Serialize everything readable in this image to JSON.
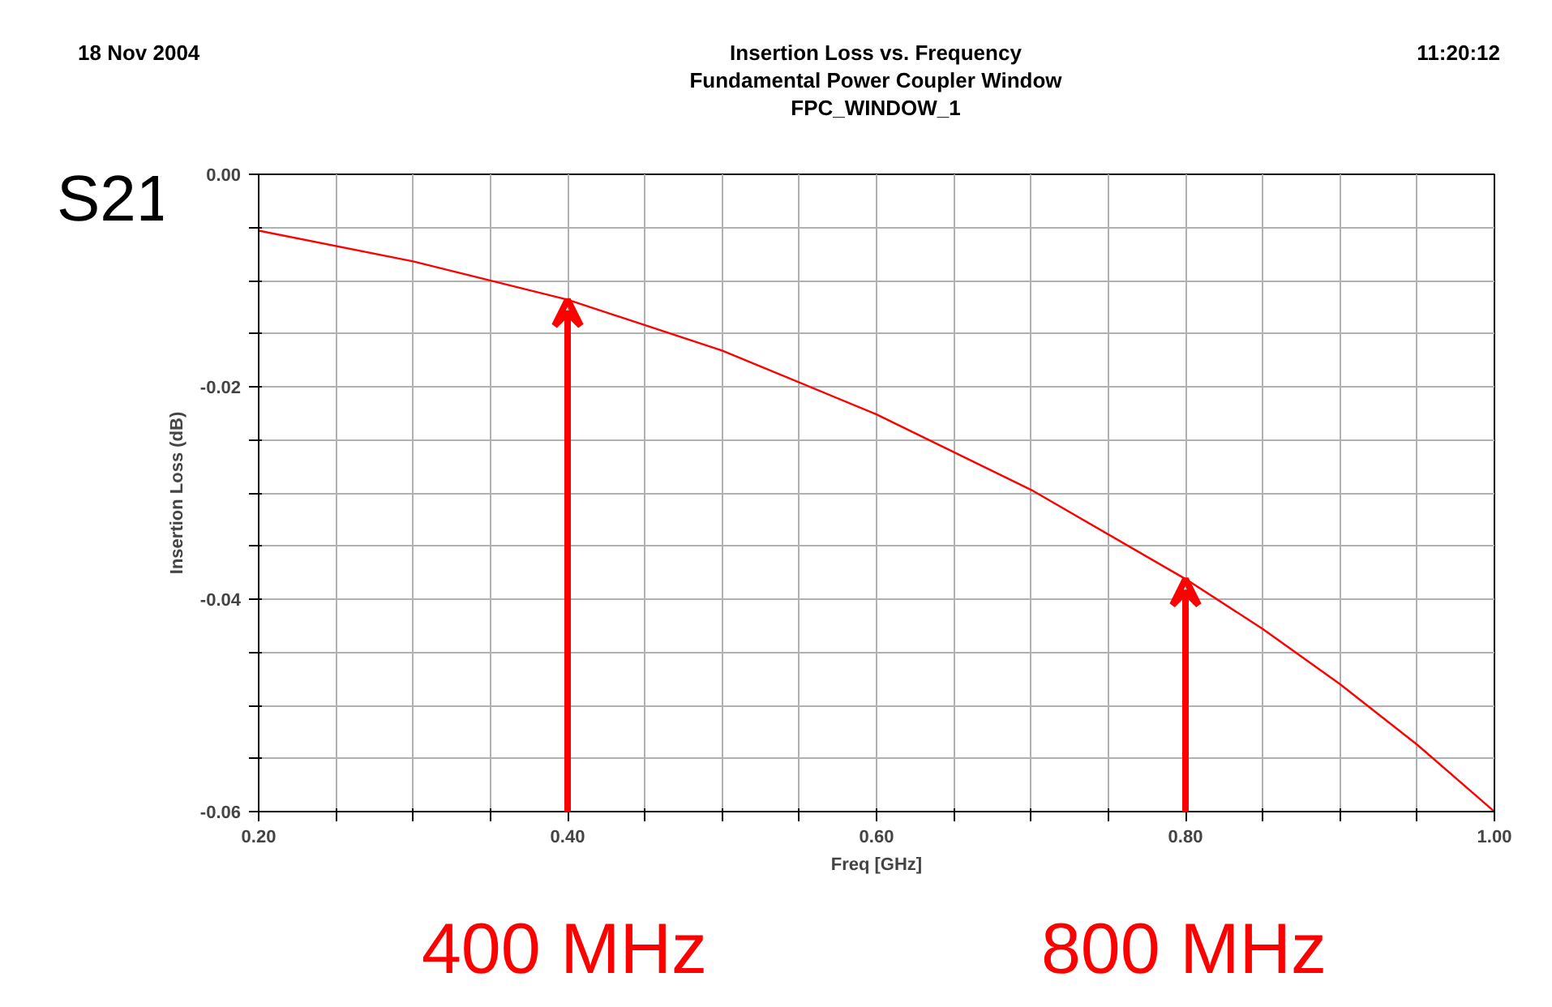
{
  "chart_data": {
    "type": "line",
    "title": "Insertion Loss vs. Frequency",
    "subtitle": "Fundamental Power Coupler Window\nFPC_WINDOW_1",
    "xlabel": "Freq [GHz]",
    "ylabel": "Insertion Loss (dB)",
    "x": [
      0.2,
      0.3,
      0.4,
      0.5,
      0.6,
      0.7,
      0.8,
      0.85,
      0.9,
      0.95,
      1.0
    ],
    "series": [
      {
        "color": "#ff0000",
        "values": [
          -0.0053,
          -0.0082,
          -0.0118,
          -0.0166,
          -0.0226,
          -0.0297,
          -0.0381,
          -0.0428,
          -0.048,
          -0.0537,
          -0.06
        ]
      }
    ],
    "xlim": [
      0.2,
      1.0
    ],
    "ylim": [
      -0.06,
      0.0
    ],
    "xticks": [
      {
        "value": 0.2,
        "label": "0.20"
      },
      {
        "value": 0.25,
        "label": null
      },
      {
        "value": 0.3,
        "label": null
      },
      {
        "value": 0.35,
        "label": null
      },
      {
        "value": 0.4,
        "label": "0.40"
      },
      {
        "value": 0.45,
        "label": null
      },
      {
        "value": 0.5,
        "label": null
      },
      {
        "value": 0.55,
        "label": null
      },
      {
        "value": 0.6,
        "label": "0.60"
      },
      {
        "value": 0.65,
        "label": null
      },
      {
        "value": 0.7,
        "label": null
      },
      {
        "value": 0.75,
        "label": null
      },
      {
        "value": 0.8,
        "label": "0.80"
      },
      {
        "value": 0.85,
        "label": null
      },
      {
        "value": 0.9,
        "label": null
      },
      {
        "value": 0.95,
        "label": null
      },
      {
        "value": 1.0,
        "label": "1.00"
      }
    ],
    "yticks": [
      {
        "value": -0.06,
        "label": "-0.06"
      },
      {
        "value": -0.055,
        "label": null
      },
      {
        "value": -0.05,
        "label": null
      },
      {
        "value": -0.045,
        "label": null
      },
      {
        "value": -0.04,
        "label": "-0.04"
      },
      {
        "value": -0.035,
        "label": null
      },
      {
        "value": -0.03,
        "label": null
      },
      {
        "value": -0.025,
        "label": null
      },
      {
        "value": -0.02,
        "label": "-0.02"
      },
      {
        "value": -0.015,
        "label": null
      },
      {
        "value": -0.01,
        "label": null
      },
      {
        "value": -0.005,
        "label": null
      },
      {
        "value": 0.0,
        "label": "0.00"
      }
    ],
    "grid": true,
    "marker": "none",
    "line_style": "solid",
    "annotations": [
      "18 Nov 2004",
      "11:20:12",
      "S21",
      {
        "text": "400 MHz",
        "x": 0.4,
        "y": -0.0118
      },
      {
        "text": "800 MHz",
        "x": 0.8,
        "y": -0.0381
      }
    ]
  }
}
